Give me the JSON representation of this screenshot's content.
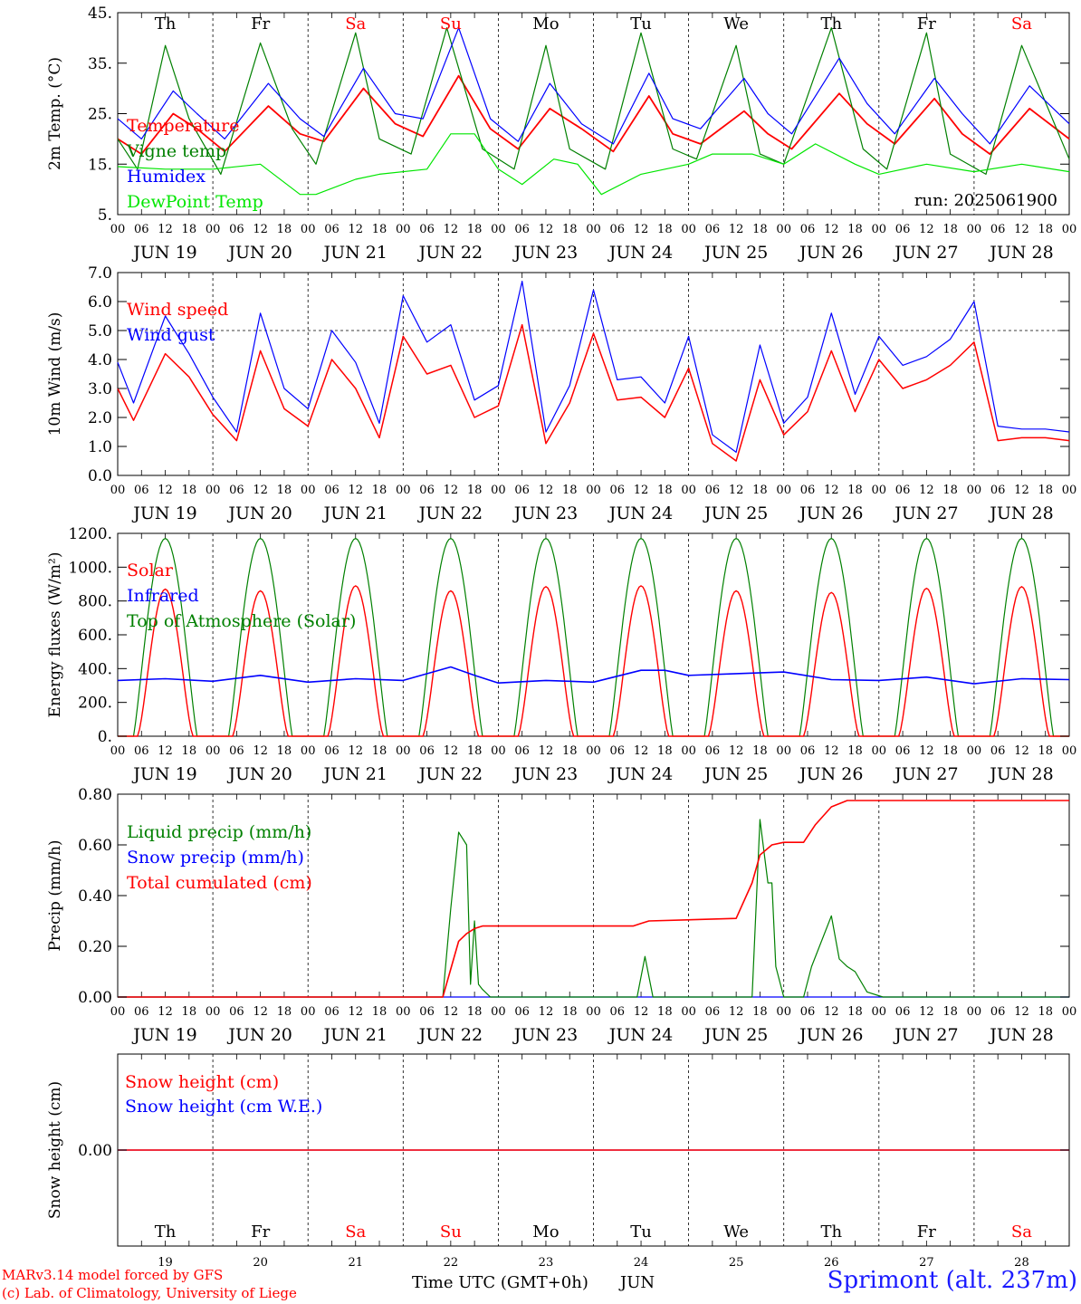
{
  "footer": {
    "model": "MARv3.14 model forced by GFS",
    "credit": "(c) Lab. of Climatology, University of Liege",
    "time_label": "Time UTC (GMT+0h)",
    "month": "JUN",
    "station": "Sprimont (alt. 237m)"
  },
  "colors": {
    "red": "#ff0000",
    "darkgreen": "#008000",
    "blue": "#0000ff",
    "lightgreen": "#00e600",
    "weekend": "#ff0000"
  },
  "chart_data": [
    {
      "type": "line",
      "ylabel": "2m Temp. (°C)",
      "ylim": [
        5,
        45
      ],
      "yticks": [
        "5.",
        "15.",
        "25.",
        "35.",
        "45."
      ],
      "annotation": "run: 2025061900",
      "weekdays": [
        "Th",
        "Fr",
        "Sa",
        "Su",
        "Mo",
        "Tu",
        "We",
        "Th",
        "Fr",
        "Sa"
      ],
      "weekend_flags": [
        false,
        false,
        true,
        true,
        false,
        false,
        false,
        false,
        false,
        true
      ],
      "x_hour_ticks": [
        "00",
        "06",
        "12",
        "18"
      ],
      "x_day_labels": [
        "JUN 19",
        "JUN 20",
        "JUN 21",
        "JUN 22",
        "JUN 23",
        "JUN 24",
        "JUN 25",
        "JUN 26",
        "JUN 27",
        "JUN 28"
      ],
      "x_hours": [
        0,
        15,
        39,
        63,
        87,
        111,
        135,
        159,
        183,
        207,
        231
      ],
      "series": [
        {
          "name": "Temperature",
          "color": "#ff0000",
          "x": [
            0,
            6,
            14,
            20,
            27,
            38,
            46,
            52,
            62,
            70,
            77,
            86,
            94,
            101,
            109,
            117,
            125,
            134,
            140,
            147,
            158,
            164,
            170,
            182,
            189,
            196,
            206,
            213,
            220,
            230,
            240
          ],
          "y": [
            20,
            17,
            25,
            22,
            17.5,
            26.5,
            21,
            19.5,
            30,
            23,
            20.5,
            32.5,
            22,
            18,
            26,
            22,
            17.5,
            28.5,
            21,
            19,
            25.5,
            21,
            18,
            29,
            23,
            19,
            28,
            21,
            17,
            26,
            20
          ]
        },
        {
          "name": "Vigne temp",
          "color": "#008000",
          "x": [
            0,
            5,
            12,
            18,
            26,
            36,
            44,
            50,
            60,
            66,
            74,
            83,
            92,
            100,
            108,
            114,
            123,
            132,
            140,
            146,
            156,
            162,
            168,
            180,
            188,
            194,
            204,
            210,
            219,
            228,
            240
          ],
          "y": [
            20,
            14,
            38.5,
            24,
            13,
            39,
            22,
            15,
            41,
            20,
            17,
            42,
            18,
            14,
            38.5,
            18,
            14,
            41,
            18,
            16,
            38.5,
            17,
            15,
            42,
            18,
            14,
            41,
            17,
            13,
            38.5,
            16
          ]
        },
        {
          "name": "Humidex",
          "color": "#0000ff",
          "x": [
            0,
            6,
            14,
            20,
            27,
            38,
            46,
            52,
            62,
            70,
            77,
            86,
            94,
            101,
            109,
            117,
            125,
            134,
            140,
            147,
            158,
            164,
            170,
            182,
            189,
            196,
            206,
            213,
            220,
            230,
            240
          ],
          "y": [
            24,
            20,
            29.5,
            25,
            20,
            31,
            24,
            20.5,
            34,
            25,
            24,
            42,
            24,
            19.5,
            31,
            23,
            19,
            33,
            24,
            22,
            32,
            25,
            21,
            36,
            27,
            21,
            32,
            25,
            19,
            30.5,
            23
          ]
        },
        {
          "name": "DewPoint Temp",
          "color": "#00e600",
          "x": [
            0,
            12,
            24,
            36,
            46,
            50,
            60,
            66,
            78,
            84,
            90,
            96,
            102,
            110,
            116,
            122,
            132,
            144,
            150,
            160,
            168,
            176,
            186,
            192,
            204,
            216,
            228,
            240
          ],
          "y": [
            14.5,
            14,
            14,
            15,
            9,
            9,
            12,
            13,
            14,
            21,
            21,
            14,
            11,
            16,
            15,
            9,
            13,
            15,
            17,
            17,
            15,
            19,
            15,
            13,
            15,
            13.5,
            15,
            13.5
          ]
        }
      ]
    },
    {
      "type": "line",
      "ylabel": "10m Wind (m/s)",
      "ylim": [
        0,
        7
      ],
      "yticks": [
        "0.0",
        "1.0",
        "2.0",
        "3.0",
        "4.0",
        "5.0",
        "6.0",
        "7.0"
      ],
      "reference_line": 5,
      "x_hour_ticks": [
        "00",
        "06",
        "12",
        "18"
      ],
      "x_day_labels": [
        "JUN 19",
        "JUN 20",
        "JUN 21",
        "JUN 22",
        "JUN 23",
        "JUN 24",
        "JUN 25",
        "JUN 26",
        "JUN 27",
        "JUN 28"
      ],
      "series": [
        {
          "name": "Wind speed",
          "color": "#ff0000",
          "x": [
            0,
            4,
            12,
            18,
            24,
            30,
            36,
            42,
            48,
            54,
            60,
            66,
            72,
            78,
            84,
            90,
            96,
            102,
            108,
            114,
            120,
            126,
            132,
            138,
            144,
            150,
            156,
            162,
            168,
            174,
            180,
            186,
            192,
            198,
            204,
            210,
            216,
            222,
            228,
            234,
            240
          ],
          "y": [
            3,
            1.9,
            4.2,
            3.4,
            2.1,
            1.2,
            4.3,
            2.3,
            1.7,
            4,
            3,
            1.3,
            4.8,
            3.5,
            3.8,
            2,
            2.4,
            5.2,
            1.1,
            2.5,
            4.9,
            2.6,
            2.7,
            2,
            3.7,
            1.1,
            0.5,
            3.3,
            1.4,
            2.2,
            4.3,
            2.2,
            4,
            3,
            3.3,
            3.8,
            4.6,
            1.2,
            1.3,
            1.3,
            1.2
          ]
        },
        {
          "name": "Wind gust",
          "color": "#0000ff",
          "x": [
            0,
            4,
            12,
            18,
            24,
            30,
            36,
            42,
            48,
            54,
            60,
            66,
            72,
            78,
            84,
            90,
            96,
            102,
            108,
            114,
            120,
            126,
            132,
            138,
            144,
            150,
            156,
            162,
            168,
            174,
            180,
            186,
            192,
            198,
            204,
            210,
            216,
            222,
            228,
            234,
            240
          ],
          "y": [
            3.9,
            2.5,
            5.5,
            4.2,
            2.7,
            1.5,
            5.6,
            3,
            2.3,
            5,
            3.9,
            1.8,
            6.2,
            4.6,
            5.2,
            2.6,
            3.1,
            6.7,
            1.5,
            3.1,
            6.4,
            3.3,
            3.4,
            2.5,
            4.8,
            1.4,
            0.8,
            4.5,
            1.8,
            2.7,
            5.6,
            2.8,
            4.8,
            3.8,
            4.1,
            4.7,
            6,
            1.7,
            1.6,
            1.6,
            1.5
          ]
        }
      ]
    },
    {
      "type": "line",
      "ylabel": "Energy fluxes (W/m²)",
      "ylim": [
        0,
        1200
      ],
      "yticks": [
        "0.",
        "200.",
        "400.",
        "600.",
        "800.",
        "1000.",
        "1200."
      ],
      "x_hour_ticks": [
        "00",
        "06",
        "12",
        "18"
      ],
      "x_day_labels": [
        "JUN 19",
        "JUN 20",
        "JUN 21",
        "JUN 22",
        "JUN 23",
        "JUN 24",
        "JUN 25",
        "JUN 26",
        "JUN 27",
        "JUN 28"
      ],
      "solar_peaks": [
        870,
        860,
        890,
        860,
        885,
        890,
        860,
        850,
        875,
        885
      ],
      "toa_peak": 1170,
      "series": [
        {
          "name": "Solar",
          "color": "#ff0000"
        },
        {
          "name": "Infrared",
          "color": "#0000ff",
          "x": [
            0,
            12,
            24,
            36,
            48,
            60,
            72,
            84,
            90,
            96,
            108,
            120,
            132,
            138,
            144,
            156,
            168,
            180,
            192,
            204,
            216,
            228,
            240
          ],
          "y": [
            330,
            340,
            325,
            360,
            320,
            340,
            330,
            410,
            360,
            315,
            330,
            320,
            390,
            390,
            360,
            370,
            380,
            335,
            330,
            350,
            310,
            340,
            335
          ]
        },
        {
          "name": "Top of Atmosphere (Solar)",
          "color": "#008000"
        }
      ]
    },
    {
      "type": "line",
      "ylabel": "Precip (mm/h)",
      "ylim": [
        0,
        0.8
      ],
      "yticks": [
        "0.00",
        "0.20",
        "0.40",
        "0.60",
        "0.80"
      ],
      "x_hour_ticks": [
        "00",
        "06",
        "12",
        "18"
      ],
      "x_day_labels": [
        "JUN 19",
        "JUN 20",
        "JUN 21",
        "JUN 22",
        "JUN 23",
        "JUN 24",
        "JUN 25",
        "JUN 26",
        "JUN 27",
        "JUN 28"
      ],
      "series": [
        {
          "name": "Liquid precip (mm/h)",
          "color": "#008000",
          "x": [
            0,
            82,
            84,
            86,
            88,
            89,
            90,
            91,
            92,
            94,
            95,
            131,
            133,
            135,
            160,
            162,
            164,
            165,
            166,
            168,
            170,
            173,
            175,
            180,
            182,
            184,
            186,
            189,
            193,
            196,
            240
          ],
          "y": [
            0,
            0,
            0.35,
            0.65,
            0.6,
            0.05,
            0.3,
            0.05,
            0.03,
            0,
            0,
            0,
            0.16,
            0,
            0,
            0.7,
            0.45,
            0.45,
            0.12,
            0,
            0,
            0,
            0.12,
            0.32,
            0.15,
            0.12,
            0.1,
            0.02,
            0,
            0,
            0
          ]
        },
        {
          "name": "Snow precip (mm/h)",
          "color": "#0000ff",
          "x": [
            0,
            240
          ],
          "y": [
            0,
            0
          ]
        },
        {
          "name": "Total cumulated (cm)",
          "color": "#ff0000",
          "x": [
            0,
            82,
            86,
            88,
            90,
            92,
            130,
            132,
            134,
            156,
            160,
            162,
            165,
            168,
            171,
            173,
            176,
            180,
            184,
            240
          ],
          "y": [
            0,
            0,
            0.22,
            0.25,
            0.27,
            0.28,
            0.28,
            0.29,
            0.3,
            0.31,
            0.45,
            0.56,
            0.6,
            0.61,
            0.61,
            0.61,
            0.68,
            0.75,
            0.775,
            0.775
          ]
        }
      ]
    },
    {
      "type": "line",
      "ylabel": "Snow height (cm)",
      "ylim": [
        -1,
        1
      ],
      "yticks": [
        "0.00"
      ],
      "weekdays": [
        "Th",
        "Fr",
        "Sa",
        "Su",
        "Mo",
        "Tu",
        "We",
        "Th",
        "Fr",
        "Sa"
      ],
      "weekend_flags": [
        false,
        false,
        true,
        true,
        false,
        false,
        false,
        false,
        false,
        true
      ],
      "x_day_numbers": [
        "19",
        "20",
        "21",
        "22",
        "23",
        "24",
        "25",
        "26",
        "27",
        "28"
      ],
      "series": [
        {
          "name": "Snow height (cm)",
          "color": "#ff0000",
          "x": [
            0,
            240
          ],
          "y": [
            0,
            0
          ]
        },
        {
          "name": "Snow height (cm W.E.)",
          "color": "#0000ff",
          "x": [
            0,
            240
          ],
          "y": [
            0,
            0
          ]
        }
      ]
    }
  ]
}
